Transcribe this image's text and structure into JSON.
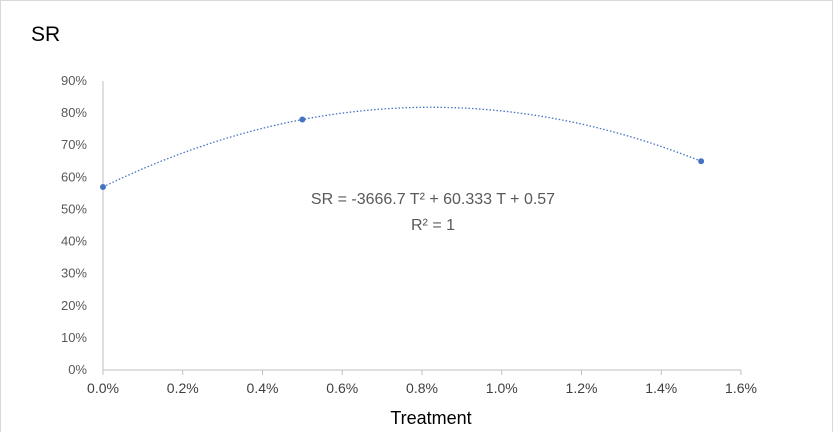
{
  "chart_data": {
    "type": "scatter",
    "title": "SR",
    "xlabel": "Treatment",
    "ylabel": "",
    "xlim": [
      0,
      0.016
    ],
    "ylim": [
      0,
      0.9
    ],
    "x_ticks": [
      "0.0%",
      "0.2%",
      "0.4%",
      "0.6%",
      "0.8%",
      "1.0%",
      "1.2%",
      "1.4%",
      "1.6%"
    ],
    "y_ticks": [
      "0%",
      "10%",
      "20%",
      "30%",
      "40%",
      "50%",
      "60%",
      "70%",
      "80%",
      "90%"
    ],
    "grid": false,
    "series": [
      {
        "x": [
          0.0,
          0.005,
          0.015
        ],
        "y": [
          0.57,
          0.78,
          0.65
        ]
      }
    ],
    "trendline": {
      "type": "polynomial",
      "order": 2,
      "coefficients": {
        "a": -3666.7,
        "b": 60.333,
        "c": 0.57
      },
      "equation_text": "SR = -3666.7 T² + 60.333 T + 0.57",
      "r2_text": "R² = 1",
      "style": "dotted"
    },
    "colors": {
      "series": "#4472c4",
      "trendline": "#4472c4",
      "axis": "#bfbfbf"
    }
  }
}
